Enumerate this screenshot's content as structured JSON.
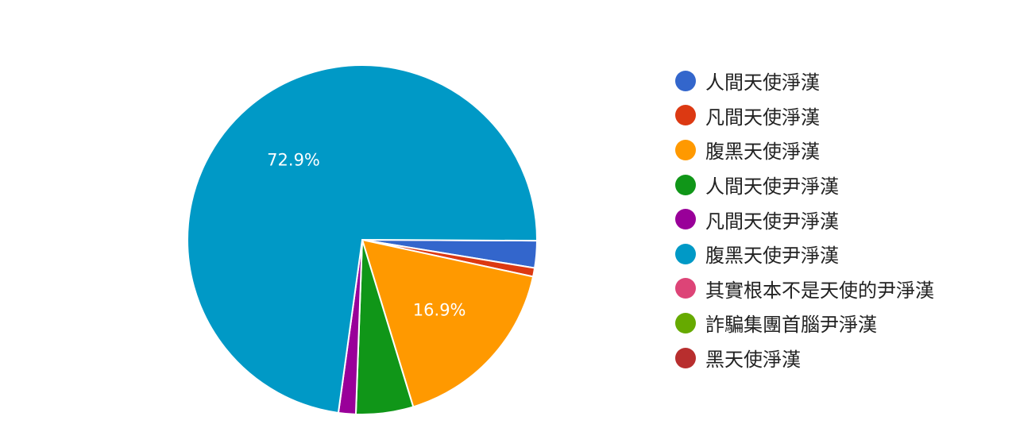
{
  "chart_data": {
    "type": "pie",
    "slices": [
      {
        "name": "人間天使淨漢",
        "value": 2.5,
        "color": "#3366cc"
      },
      {
        "name": "凡間天使淨漢",
        "value": 0.8,
        "color": "#dc3912"
      },
      {
        "name": "腹黑天使淨漢",
        "value": 16.9,
        "color": "#ff9900"
      },
      {
        "name": "人間天使尹淨漢",
        "value": 5.3,
        "color": "#109618"
      },
      {
        "name": "凡間天使尹淨漢",
        "value": 1.6,
        "color": "#990099"
      },
      {
        "name": "腹黑天使尹淨漢",
        "value": 72.9,
        "color": "#0099c6"
      },
      {
        "name": "其實根本不是天使的尹淨漢",
        "value": 0,
        "color": "#dd4477"
      },
      {
        "name": "詐騙集團首腦尹淨漢",
        "value": 0,
        "color": "#66aa00"
      },
      {
        "name": "黑天使淨漢",
        "value": 0,
        "color": "#b82e2e"
      }
    ],
    "data_labels": [
      "72.9%",
      "16.9%"
    ],
    "legend_position": "right"
  }
}
